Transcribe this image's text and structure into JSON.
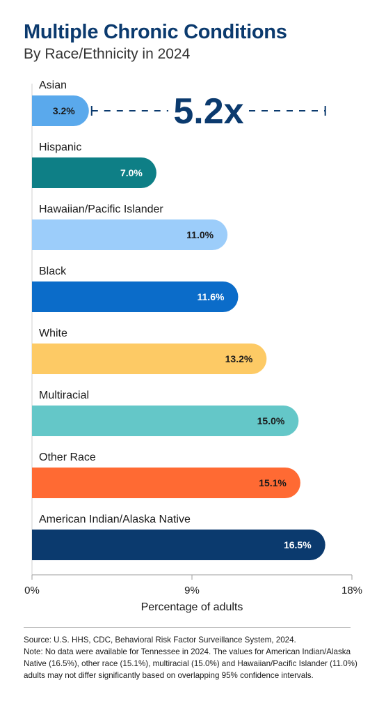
{
  "header": {
    "title": "Multiple Chronic Conditions",
    "subtitle": "By Race/Ethnicity in 2024"
  },
  "chart_data": {
    "type": "bar",
    "orientation": "horizontal",
    "title": "Multiple Chronic Conditions",
    "subtitle": "By Race/Ethnicity in 2024",
    "xlabel": "Percentage of adults",
    "ylabel": "",
    "xlim": [
      0,
      18
    ],
    "ticks": [
      "0%",
      "9%",
      "18%"
    ],
    "tick_values": [
      0,
      9,
      18
    ],
    "grid": false,
    "categories": [
      "Asian",
      "Hispanic",
      "Hawaiian/Pacific Islander",
      "Black",
      "White",
      "Multiracial",
      "Other Race",
      "American Indian/Alaska Native"
    ],
    "values": [
      3.2,
      7.0,
      11.0,
      11.6,
      13.2,
      15.0,
      15.1,
      16.5
    ],
    "value_labels": [
      "3.2%",
      "7.0%",
      "11.0%",
      "11.6%",
      "13.2%",
      "15.0%",
      "15.1%",
      "16.5%"
    ],
    "colors": [
      "#5aa9ec",
      "#0e7f86",
      "#9ccdfa",
      "#0b6cc9",
      "#fdca65",
      "#64c7c8",
      "#ff6a33",
      "#0b3a6e"
    ],
    "label_colors": [
      "#1a1a1a",
      "#ffffff",
      "#1a1a1a",
      "#ffffff",
      "#1a1a1a",
      "#1a1a1a",
      "#1a1a1a",
      "#ffffff"
    ],
    "annotation": {
      "text": "5.2x",
      "from_value": 3.2,
      "to_value": 16.5,
      "color": "#0b3a6e"
    }
  },
  "footnote": {
    "source": "Source: U.S. HHS, CDC, Behavioral Risk Factor Surveillance System, 2024.",
    "note": "Note: No data were available for Tennessee in 2024. The values for American Indian/Alaska Native (16.5%), other race (15.1%), multiracial (15.0%) and Hawaiian/Pacific Islander (11.0%) adults may not differ significantly based on overlapping 95% confidence intervals."
  }
}
